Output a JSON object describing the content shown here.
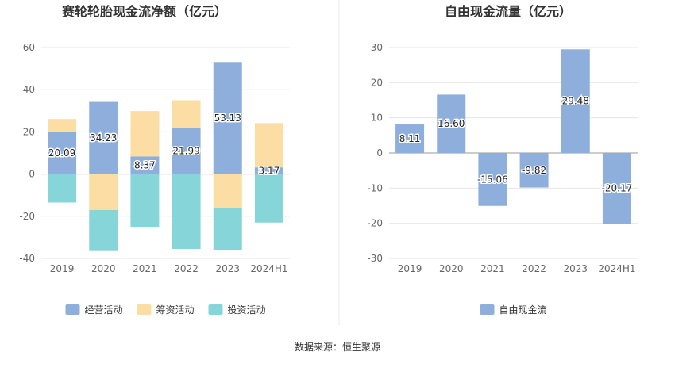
{
  "source": "数据来源：恒生聚源",
  "chart_data": [
    {
      "type": "bar",
      "stacked": true,
      "title": "赛轮轮胎现金流净额（亿元）",
      "categories": [
        "2019",
        "2020",
        "2021",
        "2022",
        "2023",
        "2024H1"
      ],
      "y_ticks": [
        -40,
        -20,
        0,
        20,
        40,
        60
      ],
      "ylim": [
        -40,
        60
      ],
      "grid": true,
      "legend_position": "bottom-center",
      "series": [
        {
          "name": "经营活动",
          "color": "#8eaedb",
          "values": [
            20.09,
            34.23,
            8.37,
            21.99,
            53.13,
            3.17
          ],
          "show_labels": true
        },
        {
          "name": "筹资活动",
          "color": "#fcdda4",
          "values": [
            6.0,
            -17.0,
            21.5,
            13.0,
            -16.0,
            21.0
          ],
          "show_labels": false
        },
        {
          "name": "投资活动",
          "color": "#86d6d9",
          "values": [
            -13.5,
            -19.5,
            -25.0,
            -35.5,
            -20.0,
            -23.0
          ],
          "show_labels": false
        }
      ]
    },
    {
      "type": "bar",
      "stacked": false,
      "title": "自由现金流量（亿元）",
      "categories": [
        "2019",
        "2020",
        "2021",
        "2022",
        "2023",
        "2024H1"
      ],
      "y_ticks": [
        -30,
        -20,
        -10,
        0,
        10,
        20,
        30
      ],
      "ylim": [
        -30,
        30
      ],
      "grid": true,
      "legend_position": "bottom-center",
      "series": [
        {
          "name": "自由现金流",
          "color": "#8eaedb",
          "values": [
            8.11,
            16.6,
            -15.06,
            -9.82,
            29.48,
            -20.17
          ],
          "show_labels": true
        }
      ]
    }
  ]
}
